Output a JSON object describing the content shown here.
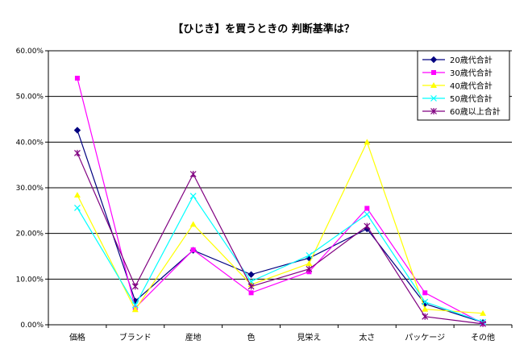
{
  "chart_data": {
    "type": "line",
    "title": "【ひじき】を買うときの 判断基準は？",
    "xlabel": "",
    "ylabel": "",
    "categories": [
      "価格",
      "ブランド",
      "産地",
      "色",
      "見栄え",
      "太さ",
      "パッケージ",
      "その他"
    ],
    "ylim": [
      0,
      60
    ],
    "yticks": [
      "0.00%",
      "10.00%",
      "20.00%",
      "30.00%",
      "40.00%",
      "50.00%",
      "60.00%"
    ],
    "grid": true,
    "legend_position": "top-right",
    "series": [
      {
        "name": "20歳代合計",
        "color": "#000080",
        "marker": "diamond",
        "values": [
          42.6,
          5.2,
          16.3,
          11.0,
          14.6,
          21.0,
          4.6,
          0.5
        ]
      },
      {
        "name": "30歳代合計",
        "color": "#ff00ff",
        "marker": "square",
        "values": [
          54.0,
          3.7,
          16.4,
          7.0,
          11.6,
          25.5,
          7.0,
          0.3
        ]
      },
      {
        "name": "40歳代合計",
        "color": "#ffff00",
        "marker": "triangle",
        "values": [
          28.4,
          3.3,
          22.0,
          8.8,
          13.4,
          40.0,
          3.4,
          2.5
        ]
      },
      {
        "name": "50歳代合計",
        "color": "#00ffff",
        "marker": "x",
        "values": [
          25.6,
          4.3,
          28.2,
          9.5,
          15.2,
          24.2,
          5.0,
          0.6
        ]
      },
      {
        "name": "60歳以上合計",
        "color": "#800080",
        "marker": "star",
        "values": [
          37.6,
          8.4,
          33.0,
          8.4,
          12.2,
          21.6,
          1.8,
          0.2
        ]
      }
    ]
  }
}
